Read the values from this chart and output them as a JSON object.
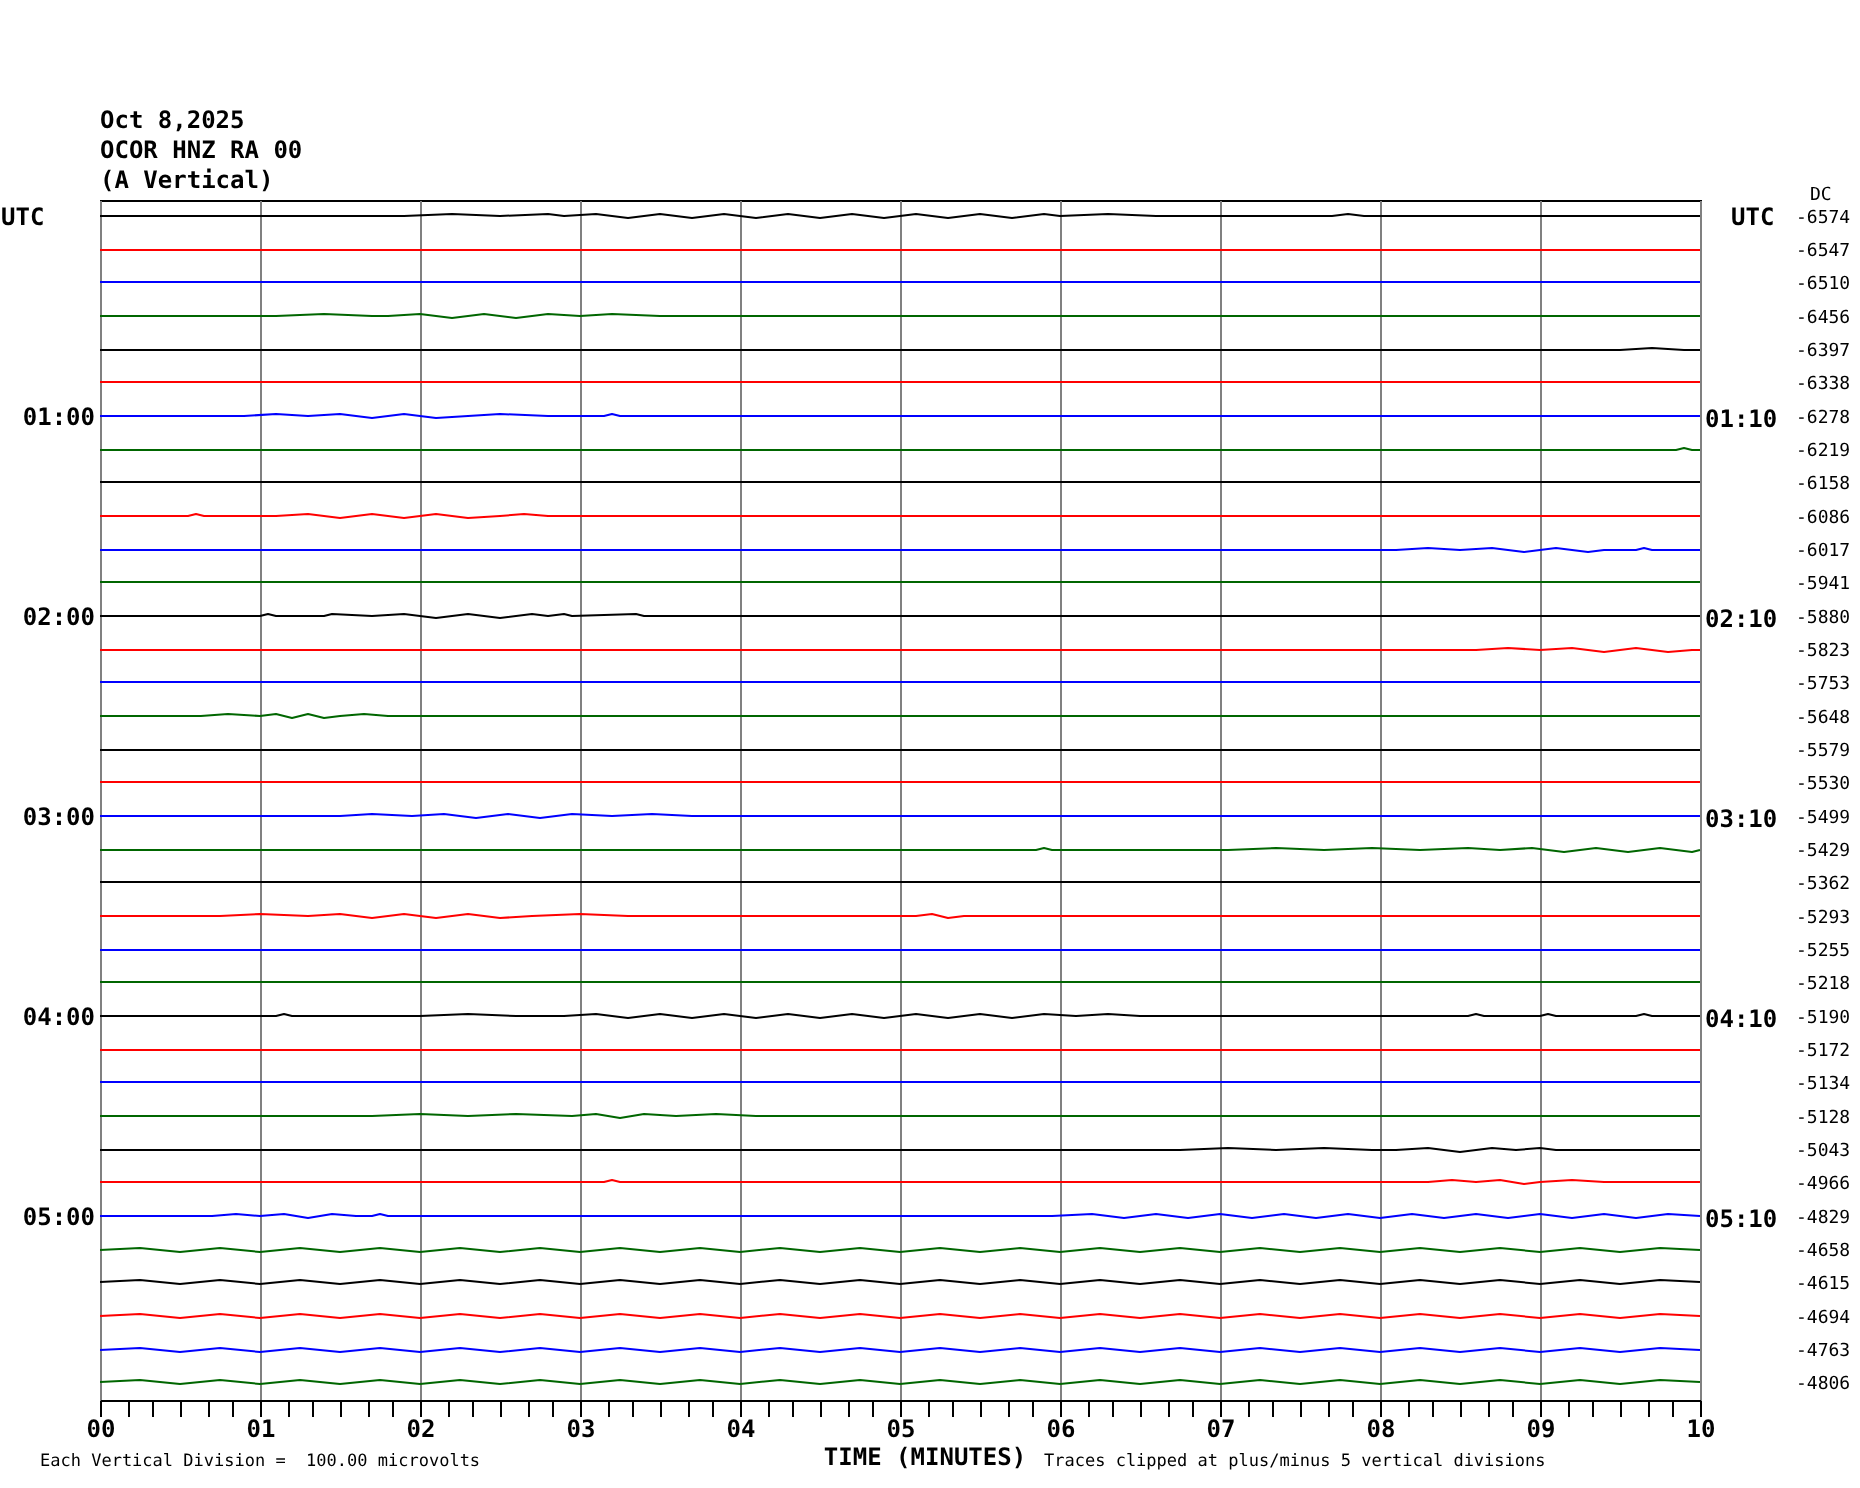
{
  "chart_data": {
    "type": "line",
    "title": "Oct 8,2025",
    "subtitle": "OCOR HNZ RA 00\n(A Vertical)",
    "xlabel": "TIME (MINUTES)",
    "ylabel": "UTC",
    "y2label": "UTC",
    "annotations": [
      "Each Vertical Division =  100.00 microvolts",
      "Traces clipped at plus/minus 5 vertical divisions",
      "DC",
      "-6574",
      "-6547",
      "-6510",
      "-6456",
      "-6397",
      "-6338",
      "-6278",
      "-6219",
      "-6158",
      "-6086",
      "-6017",
      "-5941",
      "-5880",
      "-5823",
      "-5753",
      "-5648",
      "-5579",
      "-5530",
      "-5499",
      "-5429",
      "-5362",
      "-5293",
      "-5255",
      "-5218",
      "-5190",
      "-5172",
      "-5134",
      "-5128",
      "-5043",
      "-4966",
      "-4829",
      "-4658",
      "-4615",
      "-4694",
      "-4763",
      "-4806"
    ],
    "grid": "x",
    "xlim": [
      0,
      10
    ],
    "xticks": [
      {
        "value": 0,
        "label": "00"
      },
      {
        "value": 0.17,
        "label": null
      },
      {
        "value": 0.33,
        "label": null
      },
      {
        "value": 0.5,
        "label": null
      },
      {
        "value": 0.67,
        "label": null
      },
      {
        "value": 0.83,
        "label": null
      },
      {
        "value": 1,
        "label": "01"
      },
      {
        "value": 1.17,
        "label": null
      },
      {
        "value": 1.33,
        "label": null
      },
      {
        "value": 1.5,
        "label": null
      },
      {
        "value": 1.67,
        "label": null
      },
      {
        "value": 1.83,
        "label": null
      },
      {
        "value": 2,
        "label": "02"
      },
      {
        "value": 2.17,
        "label": null
      },
      {
        "value": 2.33,
        "label": null
      },
      {
        "value": 2.5,
        "label": null
      },
      {
        "value": 2.67,
        "label": null
      },
      {
        "value": 2.83,
        "label": null
      },
      {
        "value": 3,
        "label": "03"
      },
      {
        "value": 3.17,
        "label": null
      },
      {
        "value": 3.33,
        "label": null
      },
      {
        "value": 3.5,
        "label": null
      },
      {
        "value": 3.67,
        "label": null
      },
      {
        "value": 3.83,
        "label": null
      },
      {
        "value": 4,
        "label": "04"
      },
      {
        "value": 4.17,
        "label": null
      },
      {
        "value": 4.33,
        "label": null
      },
      {
        "value": 4.5,
        "label": null
      },
      {
        "value": 4.67,
        "label": null
      },
      {
        "value": 4.83,
        "label": null
      },
      {
        "value": 5,
        "label": "05"
      },
      {
        "value": 5.17,
        "label": null
      },
      {
        "value": 5.33,
        "label": null
      },
      {
        "value": 5.5,
        "label": null
      },
      {
        "value": 5.67,
        "label": null
      },
      {
        "value": 5.83,
        "label": null
      },
      {
        "value": 6,
        "label": "06"
      },
      {
        "value": 6.17,
        "label": null
      },
      {
        "value": 6.33,
        "label": null
      },
      {
        "value": 6.5,
        "label": null
      },
      {
        "value": 6.67,
        "label": null
      },
      {
        "value": 6.83,
        "label": null
      },
      {
        "value": 7,
        "label": "07"
      },
      {
        "value": 7.17,
        "label": null
      },
      {
        "value": 7.33,
        "label": null
      },
      {
        "value": 7.5,
        "label": null
      },
      {
        "value": 7.67,
        "label": null
      },
      {
        "value": 7.83,
        "label": null
      },
      {
        "value": 8,
        "label": "08"
      },
      {
        "value": 8.17,
        "label": null
      },
      {
        "value": 8.33,
        "label": null
      },
      {
        "value": 8.5,
        "label": null
      },
      {
        "value": 8.67,
        "label": null
      },
      {
        "value": 8.83,
        "label": null
      },
      {
        "value": 9,
        "label": "09"
      },
      {
        "value": 9.17,
        "label": null
      },
      {
        "value": 9.33,
        "label": null
      },
      {
        "value": 9.5,
        "label": null
      },
      {
        "value": 9.67,
        "label": null
      },
      {
        "value": 9.83,
        "label": null
      },
      {
        "value": 10,
        "label": "10"
      }
    ],
    "ylim": [
      5.92,
      -0.08
    ],
    "yticks": [
      {
        "value": 1,
        "label": "01:00"
      },
      {
        "value": 2,
        "label": "02:00"
      },
      {
        "value": 3,
        "label": "03:00"
      },
      {
        "value": 4,
        "label": "04:00"
      },
      {
        "value": 5,
        "label": "05:00"
      }
    ],
    "y2lim": [
      6.08,
      0.08
    ],
    "y2ticks": [
      {
        "value": 1.17,
        "label": "01:10"
      },
      {
        "value": 2.17,
        "label": "02:10"
      },
      {
        "value": 3.17,
        "label": "03:10"
      },
      {
        "value": 4.17,
        "label": "04:10"
      },
      {
        "value": 5.17,
        "label": "05:10"
      }
    ],
    "series": [
      {
        "color": "#000000",
        "x": [
          0,
          1.9,
          2.2,
          2.5,
          2.8,
          2.9,
          3.1,
          3.3,
          3.5,
          3.7,
          3.9,
          4.1,
          4.3,
          4.5,
          4.7,
          4.9,
          5.1,
          5.3,
          5.5,
          5.7,
          5.9,
          6.0,
          6.3,
          6.6,
          6.8,
          7.7,
          7.8,
          7.9,
          10
        ],
        "values": [
          0,
          0,
          -0.01,
          0,
          -0.01,
          0,
          -0.01,
          0.01,
          -0.01,
          0.01,
          -0.01,
          0.01,
          -0.01,
          0.01,
          -0.01,
          0.01,
          -0.01,
          0.01,
          -0.01,
          0.01,
          -0.01,
          0,
          -0.01,
          0,
          0,
          0,
          -0.01,
          0,
          0
        ]
      },
      {
        "color": "#ff0000",
        "x": [
          0,
          10
        ],
        "values": [
          0.17,
          0.17
        ]
      },
      {
        "color": "#0000ff",
        "x": [
          0,
          10
        ],
        "values": [
          0.33,
          0.33
        ]
      },
      {
        "color": "#006600",
        "x": [
          0,
          1.1,
          1.4,
          1.7,
          1.8,
          2.0,
          2.2,
          2.4,
          2.6,
          2.8,
          3.0,
          3.2,
          3.5,
          10
        ],
        "values": [
          0.5,
          0.5,
          0.49,
          0.5,
          0.5,
          0.49,
          0.51,
          0.49,
          0.51,
          0.49,
          0.5,
          0.49,
          0.5,
          0.5
        ]
      },
      {
        "color": "#000000",
        "x": [
          0,
          9.5,
          9.7,
          9.9,
          10
        ],
        "values": [
          0.67,
          0.67,
          0.66,
          0.67,
          0.67
        ]
      },
      {
        "color": "#ff0000",
        "x": [
          0,
          10
        ],
        "values": [
          0.83,
          0.83
        ]
      },
      {
        "color": "#0000ff",
        "x": [
          0,
          0.9,
          1.1,
          1.3,
          1.5,
          1.7,
          1.9,
          2.1,
          2.3,
          2.5,
          2.8,
          3.15,
          3.2,
          3.25,
          10
        ],
        "values": [
          1,
          1,
          0.99,
          1,
          0.99,
          1.01,
          0.99,
          1.01,
          1,
          0.99,
          1,
          1,
          0.99,
          1,
          1
        ]
      },
      {
        "color": "#006600",
        "x": [
          0,
          9.85,
          9.9,
          9.95,
          10
        ],
        "values": [
          1.17,
          1.17,
          1.16,
          1.17,
          1.17
        ]
      },
      {
        "color": "#000000",
        "x": [
          0,
          10
        ],
        "values": [
          1.33,
          1.33
        ]
      },
      {
        "color": "#ff0000",
        "x": [
          0,
          0.55,
          0.6,
          0.65,
          1.1,
          1.3,
          1.5,
          1.7,
          1.9,
          2.1,
          2.3,
          2.5,
          2.65,
          2.8,
          10
        ],
        "values": [
          1.5,
          1.5,
          1.49,
          1.5,
          1.5,
          1.49,
          1.51,
          1.49,
          1.51,
          1.49,
          1.51,
          1.5,
          1.49,
          1.5,
          1.5
        ]
      },
      {
        "color": "#0000ff",
        "x": [
          0,
          8.1,
          8.3,
          8.5,
          8.7,
          8.9,
          9.1,
          9.3,
          9.4,
          9.6,
          9.65,
          9.7,
          10
        ],
        "values": [
          1.67,
          1.67,
          1.66,
          1.67,
          1.66,
          1.68,
          1.66,
          1.68,
          1.67,
          1.67,
          1.66,
          1.67,
          1.67
        ]
      },
      {
        "color": "#006600",
        "x": [
          0,
          10
        ],
        "values": [
          1.83,
          1.83
        ]
      },
      {
        "color": "#000000",
        "x": [
          0,
          1.0,
          1.05,
          1.1,
          1.4,
          1.45,
          1.7,
          1.9,
          2.1,
          2.3,
          2.5,
          2.7,
          2.8,
          2.9,
          2.95,
          3.35,
          3.4,
          10
        ],
        "values": [
          2,
          2,
          1.99,
          2,
          2,
          1.99,
          2,
          1.99,
          2.01,
          1.99,
          2.01,
          1.99,
          2,
          1.99,
          2,
          1.99,
          2,
          2
        ]
      },
      {
        "color": "#ff0000",
        "x": [
          0,
          8.6,
          8.8,
          9.0,
          9.2,
          9.4,
          9.6,
          9.8,
          9.95,
          10
        ],
        "values": [
          2.17,
          2.17,
          2.16,
          2.17,
          2.16,
          2.18,
          2.16,
          2.18,
          2.17,
          2.17
        ]
      },
      {
        "color": "#0000ff",
        "x": [
          0,
          10
        ],
        "values": [
          2.33,
          2.33
        ]
      },
      {
        "color": "#006600",
        "x": [
          0,
          0.63,
          0.8,
          1.0,
          1.1,
          1.2,
          1.3,
          1.4,
          1.5,
          1.65,
          1.8,
          10
        ],
        "values": [
          2.5,
          2.5,
          2.49,
          2.5,
          2.49,
          2.51,
          2.49,
          2.51,
          2.5,
          2.49,
          2.5,
          2.5
        ]
      },
      {
        "color": "#000000",
        "x": [
          0,
          10
        ],
        "values": [
          2.67,
          2.67
        ]
      },
      {
        "color": "#ff0000",
        "x": [
          0,
          10
        ],
        "values": [
          2.83,
          2.83
        ]
      },
      {
        "color": "#0000ff",
        "x": [
          0,
          1.5,
          1.7,
          1.95,
          2.15,
          2.35,
          2.55,
          2.75,
          2.95,
          3.2,
          3.45,
          3.7,
          10
        ],
        "values": [
          3,
          3,
          2.99,
          3,
          2.99,
          3.01,
          2.99,
          3.01,
          2.99,
          3,
          2.99,
          3,
          3
        ]
      },
      {
        "color": "#006600",
        "x": [
          0,
          5.85,
          5.9,
          5.95,
          7.05,
          7.35,
          7.65,
          7.95,
          8.25,
          8.55,
          8.75,
          8.95,
          9.15,
          9.35,
          9.55,
          9.75,
          9.95,
          10
        ],
        "values": [
          3.17,
          3.17,
          3.16,
          3.17,
          3.17,
          3.16,
          3.17,
          3.16,
          3.17,
          3.16,
          3.17,
          3.16,
          3.18,
          3.16,
          3.18,
          3.16,
          3.18,
          3.17
        ]
      },
      {
        "color": "#000000",
        "x": [
          0,
          10
        ],
        "values": [
          3.33,
          3.33
        ]
      },
      {
        "color": "#ff0000",
        "x": [
          0,
          0.75,
          1.0,
          1.3,
          1.5,
          1.7,
          1.9,
          2.1,
          2.3,
          2.5,
          2.7,
          3.0,
          3.3,
          5.1,
          5.2,
          5.3,
          5.4,
          10
        ],
        "values": [
          3.5,
          3.5,
          3.49,
          3.5,
          3.49,
          3.51,
          3.49,
          3.51,
          3.49,
          3.51,
          3.5,
          3.49,
          3.5,
          3.5,
          3.49,
          3.51,
          3.5,
          3.5
        ]
      },
      {
        "color": "#0000ff",
        "x": [
          0,
          10
        ],
        "values": [
          3.67,
          3.67
        ]
      },
      {
        "color": "#006600",
        "x": [
          0,
          10
        ],
        "values": [
          3.83,
          3.83
        ]
      },
      {
        "color": "#000000",
        "x": [
          0,
          1.1,
          1.15,
          1.2,
          2.0,
          2.3,
          2.6,
          2.9,
          3.1,
          3.3,
          3.5,
          3.7,
          3.9,
          4.1,
          4.3,
          4.5,
          4.7,
          4.9,
          5.1,
          5.3,
          5.5,
          5.7,
          5.9,
          6.1,
          6.3,
          6.5,
          8.55,
          8.6,
          8.65,
          9.0,
          9.05,
          9.1,
          9.6,
          9.65,
          9.7,
          10
        ],
        "values": [
          4,
          4,
          3.99,
          4,
          4,
          3.99,
          4,
          4,
          3.99,
          4.01,
          3.99,
          4.01,
          3.99,
          4.01,
          3.99,
          4.01,
          3.99,
          4.01,
          3.99,
          4.01,
          3.99,
          4.01,
          3.99,
          4,
          3.99,
          4,
          4,
          3.99,
          4,
          4,
          3.99,
          4,
          4,
          3.99,
          4,
          4
        ]
      },
      {
        "color": "#ff0000",
        "x": [
          0,
          10
        ],
        "values": [
          4.17,
          4.17
        ]
      },
      {
        "color": "#0000ff",
        "x": [
          0,
          10
        ],
        "values": [
          4.33,
          4.33
        ]
      },
      {
        "color": "#006600",
        "x": [
          0,
          1.7,
          2.0,
          2.3,
          2.6,
          2.95,
          3.1,
          3.25,
          3.4,
          3.6,
          3.85,
          4.1,
          10
        ],
        "values": [
          4.5,
          4.5,
          4.49,
          4.5,
          4.49,
          4.5,
          4.49,
          4.51,
          4.49,
          4.5,
          4.49,
          4.5,
          4.5
        ]
      },
      {
        "color": "#000000",
        "x": [
          0,
          6.75,
          7.05,
          7.35,
          7.65,
          7.95,
          8.1,
          8.3,
          8.5,
          8.7,
          8.85,
          9.0,
          9.1,
          10
        ],
        "values": [
          4.67,
          4.67,
          4.66,
          4.67,
          4.66,
          4.67,
          4.67,
          4.66,
          4.68,
          4.66,
          4.67,
          4.66,
          4.67,
          4.67
        ]
      },
      {
        "color": "#ff0000",
        "x": [
          0,
          3.15,
          3.2,
          3.25,
          8.3,
          8.45,
          8.6,
          8.75,
          8.9,
          9.0,
          9.2,
          9.4,
          9.55,
          10
        ],
        "values": [
          4.83,
          4.83,
          4.82,
          4.83,
          4.83,
          4.82,
          4.83,
          4.82,
          4.84,
          4.83,
          4.82,
          4.83,
          4.83,
          4.83
        ]
      },
      {
        "color": "#0000ff",
        "x": [
          0,
          0.7,
          0.85,
          1.0,
          1.15,
          1.3,
          1.45,
          1.6,
          1.7,
          1.75,
          1.8,
          5.95,
          6.2,
          6.4,
          6.6,
          6.8,
          7.0,
          7.2,
          7.4,
          7.6,
          7.8,
          8.0,
          8.2,
          8.4,
          8.6,
          8.8,
          9.0,
          9.2,
          9.4,
          9.6,
          9.8,
          10
        ],
        "values": [
          5,
          5,
          4.99,
          5,
          4.99,
          5.01,
          4.99,
          5,
          5,
          4.99,
          5,
          5,
          4.99,
          5.01,
          4.99,
          5.01,
          4.99,
          5.01,
          4.99,
          5.01,
          4.99,
          5.01,
          4.99,
          5.01,
          4.99,
          5.01,
          4.99,
          5.01,
          4.99,
          5.01,
          4.99,
          5
        ]
      },
      {
        "color": "#006600",
        "x": [
          0,
          0.25,
          0.5,
          0.75,
          1,
          1.25,
          1.5,
          1.75,
          2,
          2.25,
          2.5,
          2.75,
          3,
          3.25,
          3.5,
          3.75,
          4,
          4.25,
          4.5,
          4.75,
          5,
          5.25,
          5.5,
          5.75,
          6,
          6.25,
          6.5,
          6.75,
          7,
          7.25,
          7.5,
          7.75,
          8,
          8.25,
          8.5,
          8.75,
          9,
          9.25,
          9.5,
          9.75,
          10
        ],
        "values": [
          5.17,
          5.16,
          5.18,
          5.16,
          5.18,
          5.16,
          5.18,
          5.16,
          5.18,
          5.16,
          5.18,
          5.16,
          5.18,
          5.16,
          5.18,
          5.16,
          5.18,
          5.16,
          5.18,
          5.16,
          5.18,
          5.16,
          5.18,
          5.16,
          5.18,
          5.16,
          5.18,
          5.16,
          5.18,
          5.16,
          5.18,
          5.16,
          5.18,
          5.16,
          5.18,
          5.16,
          5.18,
          5.16,
          5.18,
          5.16,
          5.17
        ]
      },
      {
        "color": "#000000",
        "x": [
          0,
          0.25,
          0.5,
          0.75,
          1,
          1.25,
          1.5,
          1.75,
          2,
          2.25,
          2.5,
          2.75,
          3,
          3.25,
          3.5,
          3.75,
          4,
          4.25,
          4.5,
          4.75,
          5,
          5.25,
          5.5,
          5.75,
          6,
          6.25,
          6.5,
          6.75,
          7,
          7.25,
          7.5,
          7.75,
          8,
          8.25,
          8.5,
          8.75,
          9,
          9.25,
          9.5,
          9.75,
          10
        ],
        "values": [
          5.33,
          5.32,
          5.34,
          5.32,
          5.34,
          5.32,
          5.34,
          5.32,
          5.34,
          5.32,
          5.34,
          5.32,
          5.34,
          5.32,
          5.34,
          5.32,
          5.34,
          5.32,
          5.34,
          5.32,
          5.34,
          5.32,
          5.34,
          5.32,
          5.34,
          5.32,
          5.34,
          5.32,
          5.34,
          5.32,
          5.34,
          5.32,
          5.34,
          5.32,
          5.34,
          5.32,
          5.34,
          5.32,
          5.34,
          5.32,
          5.33
        ]
      },
      {
        "color": "#ff0000",
        "x": [
          0,
          0.25,
          0.5,
          0.75,
          1,
          1.25,
          1.5,
          1.75,
          2,
          2.25,
          2.5,
          2.75,
          3,
          3.25,
          3.5,
          3.75,
          4,
          4.25,
          4.5,
          4.75,
          5,
          5.25,
          5.5,
          5.75,
          6,
          6.25,
          6.5,
          6.75,
          7,
          7.25,
          7.5,
          7.75,
          8,
          8.25,
          8.5,
          8.75,
          9,
          9.25,
          9.5,
          9.75,
          10
        ],
        "values": [
          5.5,
          5.49,
          5.51,
          5.49,
          5.51,
          5.49,
          5.51,
          5.49,
          5.51,
          5.49,
          5.51,
          5.49,
          5.51,
          5.49,
          5.51,
          5.49,
          5.51,
          5.49,
          5.51,
          5.49,
          5.51,
          5.49,
          5.51,
          5.49,
          5.51,
          5.49,
          5.51,
          5.49,
          5.51,
          5.49,
          5.51,
          5.49,
          5.51,
          5.49,
          5.51,
          5.49,
          5.51,
          5.49,
          5.51,
          5.49,
          5.5
        ]
      },
      {
        "color": "#0000ff",
        "x": [
          0,
          0.25,
          0.5,
          0.75,
          1,
          1.25,
          1.5,
          1.75,
          2,
          2.25,
          2.5,
          2.75,
          3,
          3.25,
          3.5,
          3.75,
          4,
          4.25,
          4.5,
          4.75,
          5,
          5.25,
          5.5,
          5.75,
          6,
          6.25,
          6.5,
          6.75,
          7,
          7.25,
          7.5,
          7.75,
          8,
          8.25,
          8.5,
          8.75,
          9,
          9.25,
          9.5,
          9.75,
          10
        ],
        "values": [
          5.67,
          5.66,
          5.68,
          5.66,
          5.68,
          5.66,
          5.68,
          5.66,
          5.68,
          5.66,
          5.68,
          5.66,
          5.68,
          5.66,
          5.68,
          5.66,
          5.68,
          5.66,
          5.68,
          5.66,
          5.68,
          5.66,
          5.68,
          5.66,
          5.68,
          5.66,
          5.68,
          5.66,
          5.68,
          5.66,
          5.68,
          5.66,
          5.68,
          5.66,
          5.68,
          5.66,
          5.68,
          5.66,
          5.68,
          5.66,
          5.67
        ]
      },
      {
        "color": "#006600",
        "x": [
          0,
          0.25,
          0.5,
          0.75,
          1,
          1.25,
          1.5,
          1.75,
          2,
          2.25,
          2.5,
          2.75,
          3,
          3.25,
          3.5,
          3.75,
          4,
          4.25,
          4.5,
          4.75,
          5,
          5.25,
          5.5,
          5.75,
          6,
          6.25,
          6.5,
          6.75,
          7,
          7.25,
          7.5,
          7.75,
          8,
          8.25,
          8.5,
          8.75,
          9,
          9.25,
          9.5,
          9.75,
          10
        ],
        "values": [
          5.83,
          5.82,
          5.84,
          5.82,
          5.84,
          5.82,
          5.84,
          5.82,
          5.84,
          5.82,
          5.84,
          5.82,
          5.84,
          5.82,
          5.84,
          5.82,
          5.84,
          5.82,
          5.84,
          5.82,
          5.84,
          5.82,
          5.84,
          5.82,
          5.84,
          5.82,
          5.84,
          5.82,
          5.84,
          5.82,
          5.84,
          5.82,
          5.84,
          5.82,
          5.84,
          5.82,
          5.84,
          5.82,
          5.84,
          5.82,
          5.83
        ]
      }
    ]
  }
}
